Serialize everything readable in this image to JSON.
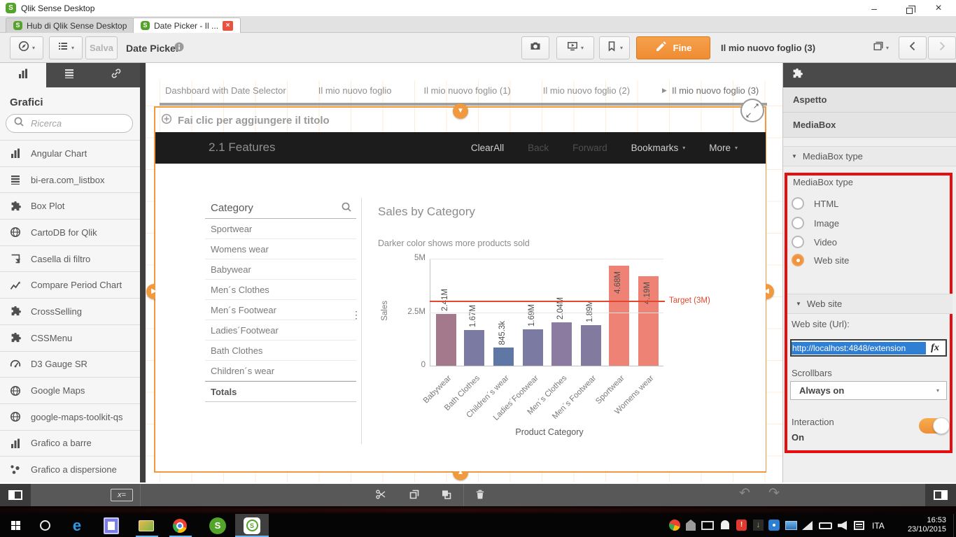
{
  "icons": {
    "caret": "▾",
    "section_caret": "▼",
    "active_tab_arrow": "▶",
    "handle_down": "▼",
    "handle_up": "▲",
    "handle_right": "▶",
    "handle_left": "◀",
    "expand_ne": "↗",
    "expand_sw": "↙",
    "dots_vertical": "⋮",
    "undo": "↶",
    "redo": "↷",
    "minimize": "–",
    "close": "×"
  },
  "app": {
    "title": "Qlik Sense Desktop"
  },
  "browser_tabs": [
    {
      "label": "Hub di Qlik Sense Desktop",
      "active": false
    },
    {
      "label": "Date Picker - Il ...",
      "active": true
    }
  ],
  "toolbar": {
    "save_label": "Salva",
    "app_name": "Date Picker",
    "done_label": "Fine",
    "sheet_name": "Il mio nuovo foglio (3)"
  },
  "sidebar": {
    "title": "Grafici",
    "search_placeholder": "Ricerca",
    "items": [
      {
        "icon": "bar-chart",
        "label": "Angular Chart"
      },
      {
        "icon": "listbox",
        "label": "bi-era.com_listbox"
      },
      {
        "icon": "puzzle",
        "label": "Box Plot"
      },
      {
        "icon": "globe",
        "label": "CartoDB for Qlik"
      },
      {
        "icon": "filter-box",
        "label": "Casella di filtro"
      },
      {
        "icon": "line-chart",
        "label": "Compare Period Chart"
      },
      {
        "icon": "puzzle",
        "label": "CrossSelling"
      },
      {
        "icon": "puzzle",
        "label": "CSSMenu"
      },
      {
        "icon": "gauge",
        "label": "D3 Gauge SR"
      },
      {
        "icon": "globe",
        "label": "Google Maps"
      },
      {
        "icon": "globe",
        "label": "google-maps-toolkit-qs"
      },
      {
        "icon": "bar-chart",
        "label": "Grafico a barre"
      },
      {
        "icon": "scatter",
        "label": "Grafico a dispersione"
      }
    ]
  },
  "canvas": {
    "sheet_tabs": [
      {
        "label": "Dashboard with Date Selector",
        "active": false
      },
      {
        "label": "Il mio nuovo foglio",
        "active": false
      },
      {
        "label": "Il mio nuovo foglio (1)",
        "active": false
      },
      {
        "label": "Il mio nuovo foglio (2)",
        "active": false
      },
      {
        "label": "Il mio nuovo foglio (3)",
        "active": true
      }
    ],
    "add_title_hint": "Fai clic per aggiungere il titolo",
    "webpage": {
      "brand": "2.1 Features",
      "menu": [
        {
          "label": "ClearAll",
          "disabled": false,
          "caret": false
        },
        {
          "label": "Back",
          "disabled": true,
          "caret": false
        },
        {
          "label": "Forward",
          "disabled": true,
          "caret": false
        },
        {
          "label": "Bookmarks",
          "disabled": false,
          "caret": true
        },
        {
          "label": "More",
          "disabled": false,
          "caret": true
        }
      ],
      "listbox": {
        "header": "Category",
        "items": [
          "Sportwear",
          "Womens wear",
          "Babywear",
          "Men´s Clothes",
          "Men´s Footwear",
          "Ladies´Footwear",
          "Bath Clothes",
          "Children´s wear"
        ],
        "footer": "Totals"
      }
    }
  },
  "chart_data": {
    "type": "bar",
    "title": "Sales by Category",
    "subtitle": "Darker color shows more products sold",
    "xlabel": "Product Category",
    "ylabel": "Sales",
    "categories": [
      "Babywear",
      "Bath Clothes",
      "Children´s wear",
      "Ladies´Footwear",
      "Men´s Clothes",
      "Men´s Footwear",
      "Sportwear",
      "Womens wear"
    ],
    "values": [
      2410000,
      1670000,
      845300,
      1690000,
      2040000,
      1890000,
      4680000,
      4190000
    ],
    "value_labels": [
      "2.41M",
      "1.67M",
      "845.3k",
      "1.69M",
      "2.04M",
      "1.89M",
      "4.68M",
      "4.19M"
    ],
    "bar_colors": [
      "#a5798c",
      "#7b7aa2",
      "#5f77a4",
      "#7b7aa2",
      "#8c7ba1",
      "#837b9f",
      "#ee8275",
      "#ee8275"
    ],
    "yticks": [
      {
        "label": "0",
        "value": 0
      },
      {
        "label": "2.5M",
        "value": 2500000
      },
      {
        "label": "5M",
        "value": 5000000
      }
    ],
    "ylim": [
      0,
      5000000
    ],
    "grid": true,
    "legend_position": "none",
    "target": {
      "value": 3000000,
      "label": "Target (3M)",
      "color": "#e2472d"
    }
  },
  "properties": {
    "panel_sections": [
      "Aspetto",
      "MediaBox"
    ],
    "type_section": {
      "header": "MediaBox type",
      "label": "MediaBox type",
      "options": [
        {
          "label": "HTML",
          "selected": false
        },
        {
          "label": "Image",
          "selected": false
        },
        {
          "label": "Video",
          "selected": false
        },
        {
          "label": "Web site",
          "selected": true
        }
      ]
    },
    "website_section": {
      "header": "Web site",
      "url_label": "Web site (Url):",
      "url_value": "http://localhost:4848/extension",
      "fx_label": "fx",
      "scrollbars_label": "Scrollbars",
      "scrollbars_value": "Always on",
      "interaction_label": "Interaction",
      "interaction_state": "On"
    }
  },
  "action_bar": {
    "var_label": "x="
  },
  "taskbar": {
    "language": "ITA",
    "time": "16:53",
    "date": "23/10/2015"
  },
  "colors": {
    "accent_orange": "#f0923e",
    "highlight_red": "#e50f0f",
    "target_red": "#e2472d",
    "selection_blue": "#2f80d4"
  }
}
